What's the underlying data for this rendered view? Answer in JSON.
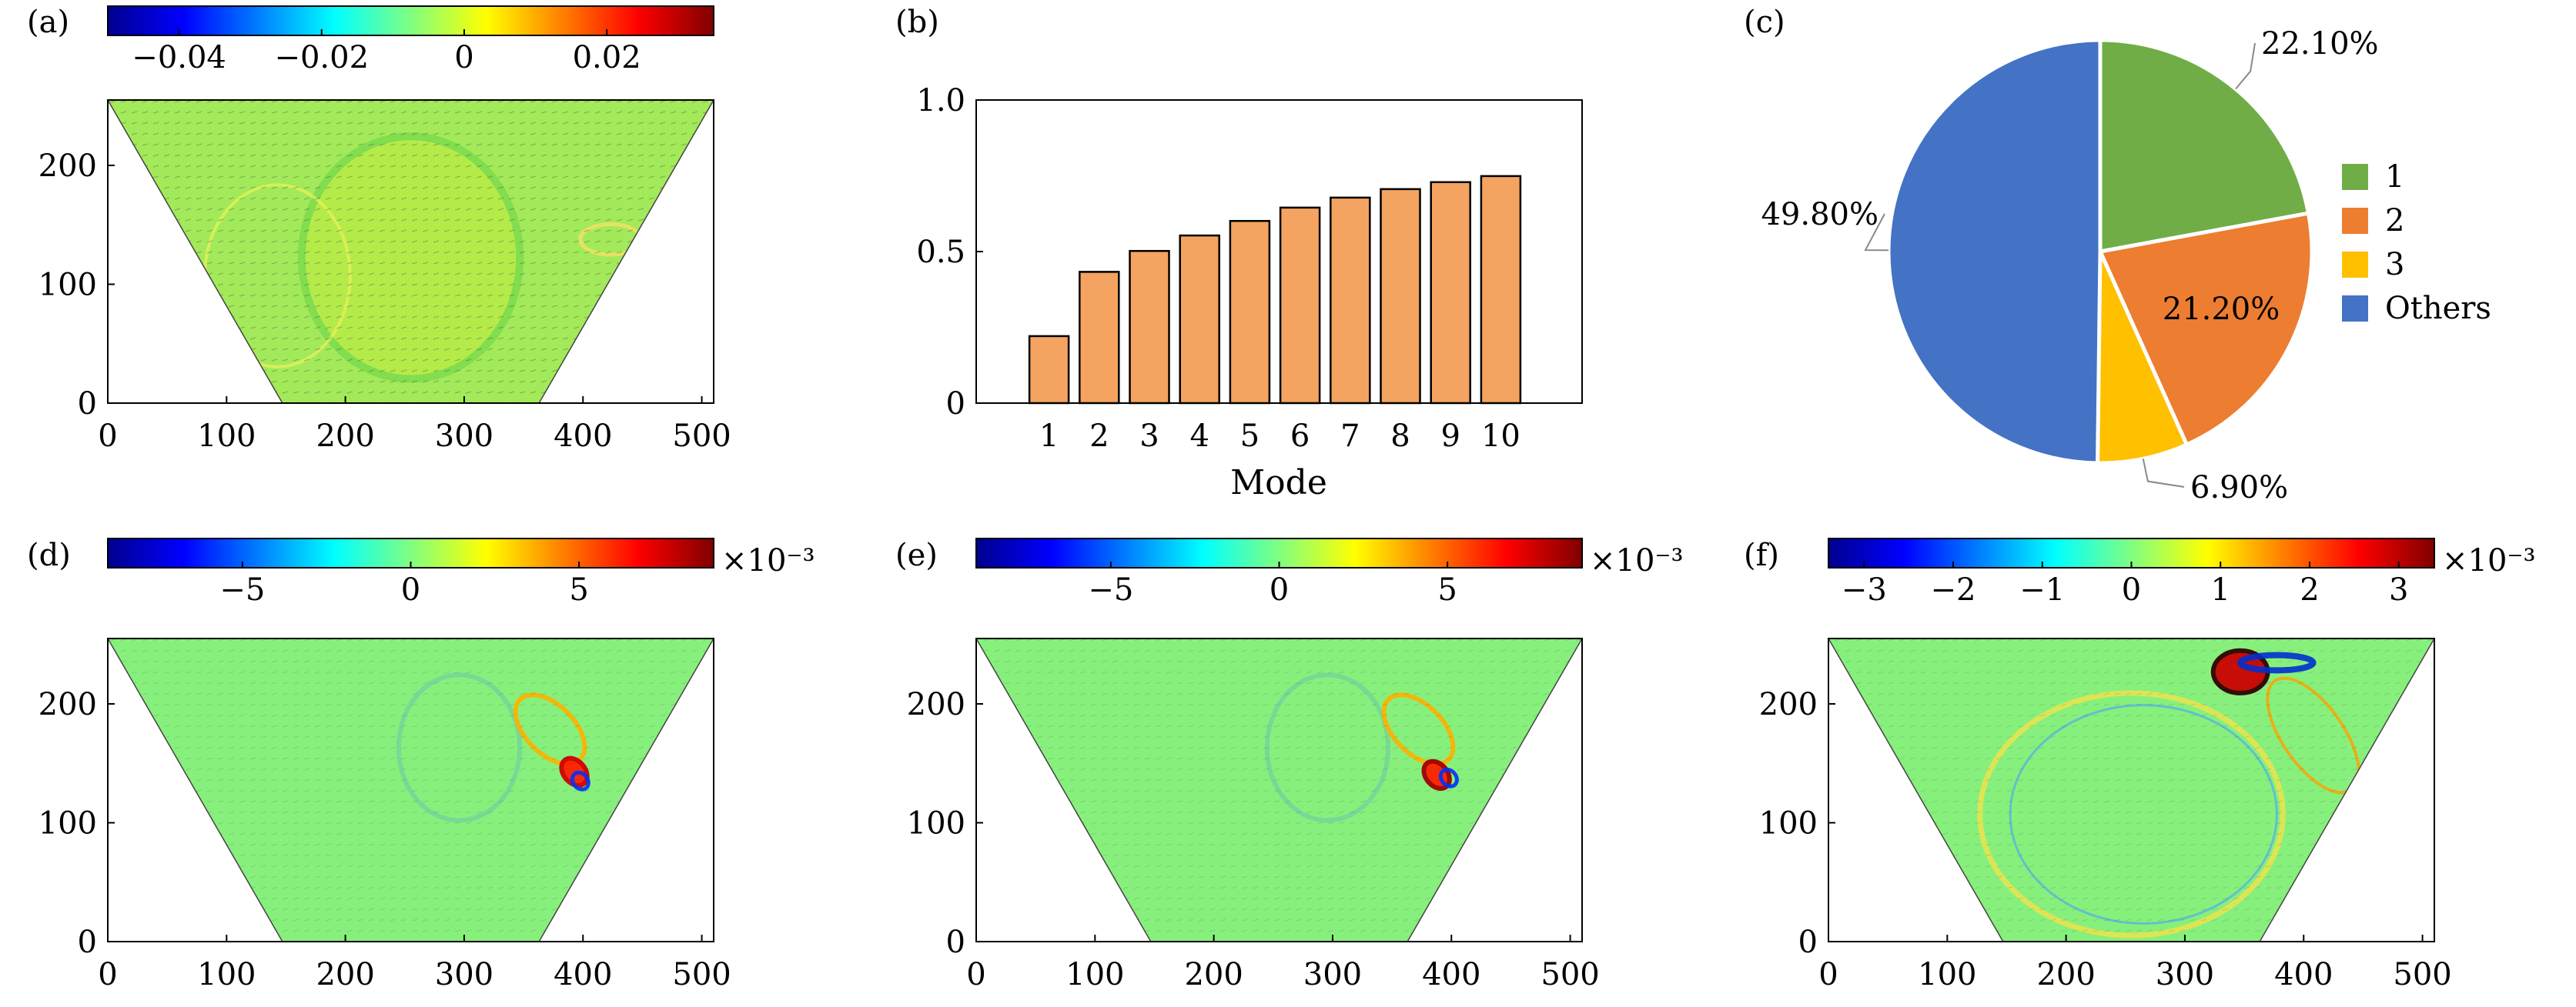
{
  "chart_data": [
    {
      "panel": "(a)",
      "type": "heatmap",
      "colorbar": {
        "ticks": [
          "−0.04",
          "−0.02",
          "0",
          "0.02"
        ],
        "tick_values": [
          -0.04,
          -0.02,
          0,
          0.02
        ],
        "range": [
          -0.05,
          0.035
        ],
        "exponent": ""
      },
      "x_ticks": [
        "0",
        "100",
        "200",
        "300",
        "400",
        "500"
      ],
      "y_ticks": [
        "0",
        "100",
        "200"
      ],
      "xlim": [
        0,
        510
      ],
      "ylim": [
        0,
        255
      ],
      "domain_trapezoid": {
        "bottom": [
          147,
          363
        ],
        "top": [
          0,
          510
        ]
      },
      "grid": false,
      "quiver": true
    },
    {
      "panel": "(b)",
      "type": "bar",
      "categories": [
        "1",
        "2",
        "3",
        "4",
        "5",
        "6",
        "7",
        "8",
        "9",
        "10"
      ],
      "values": [
        0.221,
        0.433,
        0.502,
        0.553,
        0.601,
        0.645,
        0.678,
        0.706,
        0.729,
        0.749
      ],
      "xlabel": "Mode",
      "ylabel": "",
      "ylim": [
        0,
        1.0
      ],
      "y_ticks": [
        "0",
        "0.5",
        "1.0"
      ],
      "bar_color": "#f4a460",
      "grid": false
    },
    {
      "panel": "(c)",
      "type": "pie",
      "slices": [
        {
          "label": "1",
          "value": 22.1,
          "text": "22.10%",
          "color": "#70ad47"
        },
        {
          "label": "2",
          "value": 21.2,
          "text": "21.20%",
          "color": "#ed7d31"
        },
        {
          "label": "3",
          "value": 6.9,
          "text": "6.90%",
          "color": "#ffc000"
        },
        {
          "label": "Others",
          "value": 49.8,
          "text": "49.80%",
          "color": "#4472c4"
        }
      ],
      "legend_position": "right"
    },
    {
      "panel": "(d)",
      "type": "heatmap",
      "colorbar": {
        "ticks": [
          "−5",
          "0",
          "5"
        ],
        "tick_values": [
          -5,
          0,
          5
        ],
        "range": [
          -9,
          9
        ],
        "exponent": "×10⁻³"
      },
      "x_ticks": [
        "0",
        "100",
        "200",
        "300",
        "400",
        "500"
      ],
      "y_ticks": [
        "0",
        "100",
        "200"
      ],
      "xlim": [
        0,
        510
      ],
      "ylim": [
        0,
        255
      ],
      "domain_trapezoid": {
        "bottom": [
          147,
          363
        ],
        "top": [
          0,
          510
        ]
      },
      "grid": false,
      "quiver": true
    },
    {
      "panel": "(e)",
      "type": "heatmap",
      "colorbar": {
        "ticks": [
          "−5",
          "0",
          "5"
        ],
        "tick_values": [
          -5,
          0,
          5
        ],
        "range": [
          -9,
          9
        ],
        "exponent": "×10⁻³"
      },
      "x_ticks": [
        "0",
        "100",
        "200",
        "300",
        "400",
        "500"
      ],
      "y_ticks": [
        "0",
        "100",
        "200"
      ],
      "xlim": [
        0,
        510
      ],
      "ylim": [
        0,
        255
      ],
      "domain_trapezoid": {
        "bottom": [
          147,
          363
        ],
        "top": [
          0,
          510
        ]
      },
      "grid": false,
      "quiver": true
    },
    {
      "panel": "(f)",
      "type": "heatmap",
      "colorbar": {
        "ticks": [
          "−3",
          "−2",
          "−1",
          "0",
          "1",
          "2",
          "3"
        ],
        "tick_values": [
          -3,
          -2,
          -1,
          0,
          1,
          2,
          3
        ],
        "range": [
          -3.4,
          3.4
        ],
        "exponent": "×10⁻³"
      },
      "x_ticks": [
        "0",
        "100",
        "200",
        "300",
        "400",
        "500"
      ],
      "y_ticks": [
        "0",
        "100",
        "200"
      ],
      "xlim": [
        0,
        510
      ],
      "ylim": [
        0,
        255
      ],
      "domain_trapezoid": {
        "bottom": [
          147,
          363
        ],
        "top": [
          0,
          510
        ]
      },
      "grid": false,
      "quiver": true
    }
  ]
}
